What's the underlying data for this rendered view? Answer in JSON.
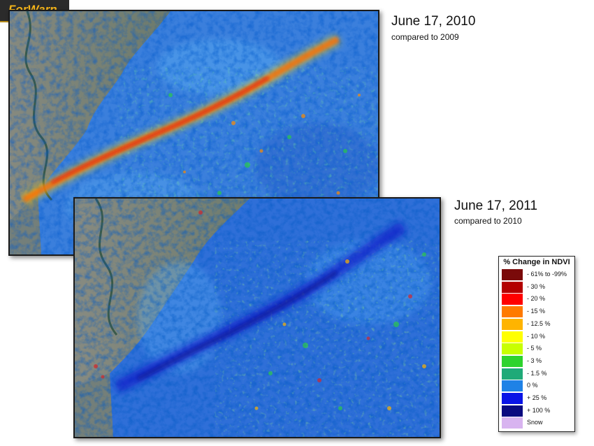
{
  "logo": {
    "text": "ForWarn"
  },
  "panels": [
    {
      "title": "June 17, 2010",
      "subtitle": "compared to 2009"
    },
    {
      "title": "June 17, 2011",
      "subtitle": "compared to 2010"
    }
  ],
  "legend": {
    "title": "% Change in NDVI",
    "items": [
      {
        "label": "- 61% to -99%",
        "color": "#7a0a0a"
      },
      {
        "label": "- 30 %",
        "color": "#b30000"
      },
      {
        "label": "- 20 %",
        "color": "#ff0000"
      },
      {
        "label": "- 15 %",
        "color": "#ff7a00"
      },
      {
        "label": "- 12.5 %",
        "color": "#ffb400"
      },
      {
        "label": "- 10 %",
        "color": "#ffff00"
      },
      {
        "label": "- 5 %",
        "color": "#c8ff00"
      },
      {
        "label": "- 3 %",
        "color": "#2ed32e"
      },
      {
        "label": "- 1.5 %",
        "color": "#1faa78"
      },
      {
        "label": "0 %",
        "color": "#1f82e6"
      },
      {
        "label": "+ 25 %",
        "color": "#0a14e6"
      },
      {
        "label": "+ 100 %",
        "color": "#0a0a80"
      },
      {
        "label": "Snow",
        "color": "#d8b4f0"
      }
    ]
  }
}
